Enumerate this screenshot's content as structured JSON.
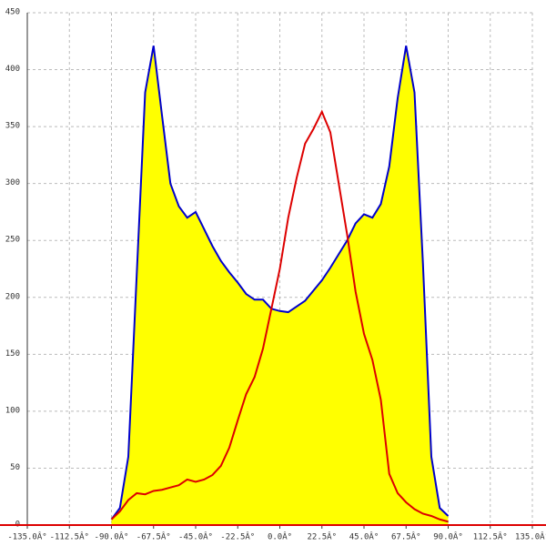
{
  "chart_data": {
    "type": "area",
    "x": [
      -90,
      -85.5,
      -81,
      -76.5,
      -72,
      -67.5,
      -63,
      -58.5,
      -54,
      -49.5,
      -45,
      -40.5,
      -36,
      -31.5,
      -27,
      -22.5,
      -18,
      -13.5,
      -9,
      -4.5,
      0,
      4.5,
      9,
      13.5,
      18,
      22.5,
      27,
      31.5,
      36,
      40.5,
      45,
      49.5,
      54,
      58.5,
      63,
      67.5,
      72,
      76.5,
      81,
      85.5,
      90
    ],
    "series": [
      {
        "color": "#0000cc",
        "fill": "#ffff00",
        "values": [
          5,
          15,
          60,
          220,
          380,
          421,
          360,
          300,
          280,
          270,
          275,
          260,
          245,
          232,
          222,
          213,
          203,
          198,
          198,
          190,
          188,
          187,
          192,
          197,
          206,
          215,
          226,
          238,
          250,
          265,
          273,
          270,
          282,
          315,
          375,
          421,
          380,
          230,
          60,
          15,
          8
        ]
      },
      {
        "color": "#dd0000",
        "values": [
          5,
          12,
          22,
          28,
          27,
          30,
          31,
          33,
          35,
          40,
          38,
          40,
          44,
          52,
          68,
          92,
          115,
          130,
          155,
          190,
          225,
          270,
          305,
          335,
          348,
          363,
          345,
          300,
          255,
          205,
          168,
          145,
          110,
          45,
          28,
          20,
          14,
          10,
          8,
          5,
          3
        ]
      }
    ],
    "xlim": [
      -135,
      135
    ],
    "xticks": [
      {
        "value": -135,
        "label": "-135.0Â°"
      },
      {
        "value": -112.5,
        "label": "-112.5Â°"
      },
      {
        "value": -90,
        "label": "-90.0Â°"
      },
      {
        "value": -67.5,
        "label": "-67.5Â°"
      },
      {
        "value": -45,
        "label": "-45.0Â°"
      },
      {
        "value": -22.5,
        "label": "-22.5Â°"
      },
      {
        "value": 0,
        "label": "0.0Â°"
      },
      {
        "value": 22.5,
        "label": "22.5Â°"
      },
      {
        "value": 45,
        "label": "45.0Â°"
      },
      {
        "value": 67.5,
        "label": "67.5Â°"
      },
      {
        "value": 90,
        "label": "90.0Â°"
      },
      {
        "value": 112.5,
        "label": "112.5Â°"
      },
      {
        "value": 135,
        "label": "135.0Â°"
      }
    ],
    "ylim": [
      0,
      450
    ],
    "yticks": [
      0,
      50,
      100,
      150,
      200,
      250,
      300,
      350,
      400,
      450
    ],
    "grid": true
  }
}
